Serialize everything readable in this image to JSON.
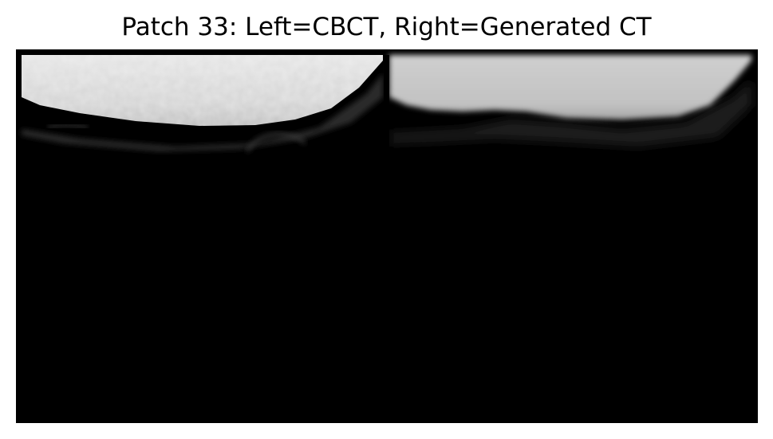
{
  "figure": {
    "title": "Patch 33: Left=CBCT, Right=Generated CT"
  },
  "panels": [
    {
      "side": "left",
      "modality": "CBCT",
      "content": "bright noisy tissue region at top, dark background below"
    },
    {
      "side": "right",
      "modality": "Generated CT",
      "content": "smooth bright tissue region at top, dark background below"
    }
  ],
  "colors": {
    "background": "#000000",
    "cbct_tissue": "#d6d6d6",
    "generated_tissue": "#c4c4c4",
    "page": "#ffffff"
  }
}
